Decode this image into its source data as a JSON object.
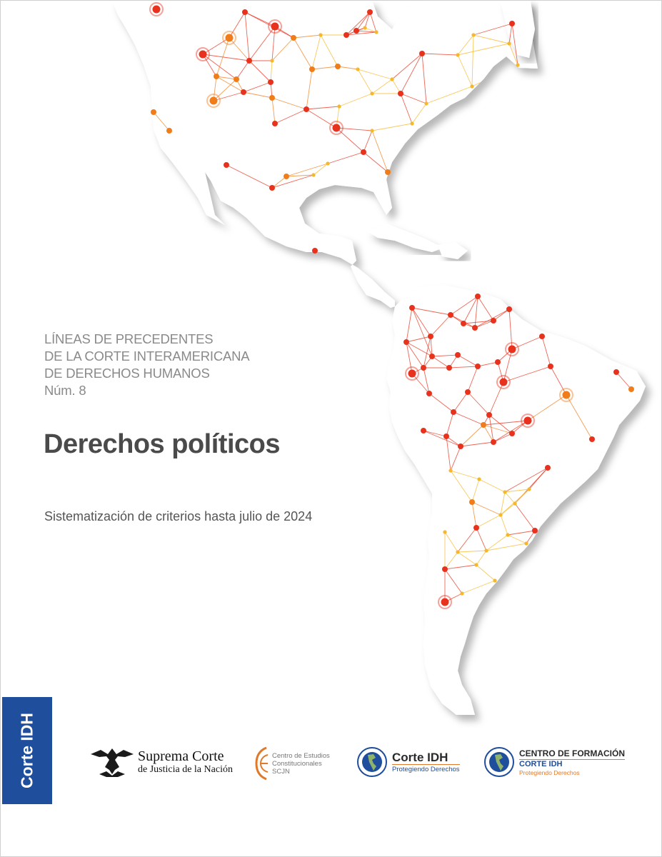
{
  "cover": {
    "series_lines": [
      "LÍNEAS DE PRECEDENTES",
      "DE LA CORTE INTERAMERICANA",
      "DE DERECHOS HUMANOS",
      "Núm. 8"
    ],
    "title": "Derechos políticos",
    "subtitle": "Sistematización de criterios hasta julio de 2024",
    "side_tab": "Corte IDH"
  },
  "logos": {
    "scjn": {
      "line1": "Suprema Corte",
      "line2": "de Justicia de la Nación",
      "icon": "eagle-emblem-icon"
    },
    "cec": {
      "lines": [
        "Centro de Estudios",
        "Constitucionales",
        "SCJN"
      ],
      "icon": "ce-monogram-icon"
    },
    "corte_idh": {
      "name": "Corte IDH",
      "tagline": "Protegiendo Derechos",
      "icon": "globe-seal-icon"
    },
    "centro_formacion": {
      "title": "CENTRO DE FORMACIÓN",
      "name": "CORTE IDH",
      "tagline": "Protegiendo Derechos",
      "icon": "globe-seal-icon"
    }
  },
  "colors": {
    "node_red": "#e8321e",
    "node_orange": "#f07d1a",
    "node_yellow": "#f5b82a",
    "title_gray": "#4a4a4a",
    "series_gray": "#8a8a8a",
    "tab_blue": "#1f4e9c",
    "accent_orange": "#e07a2a"
  }
}
